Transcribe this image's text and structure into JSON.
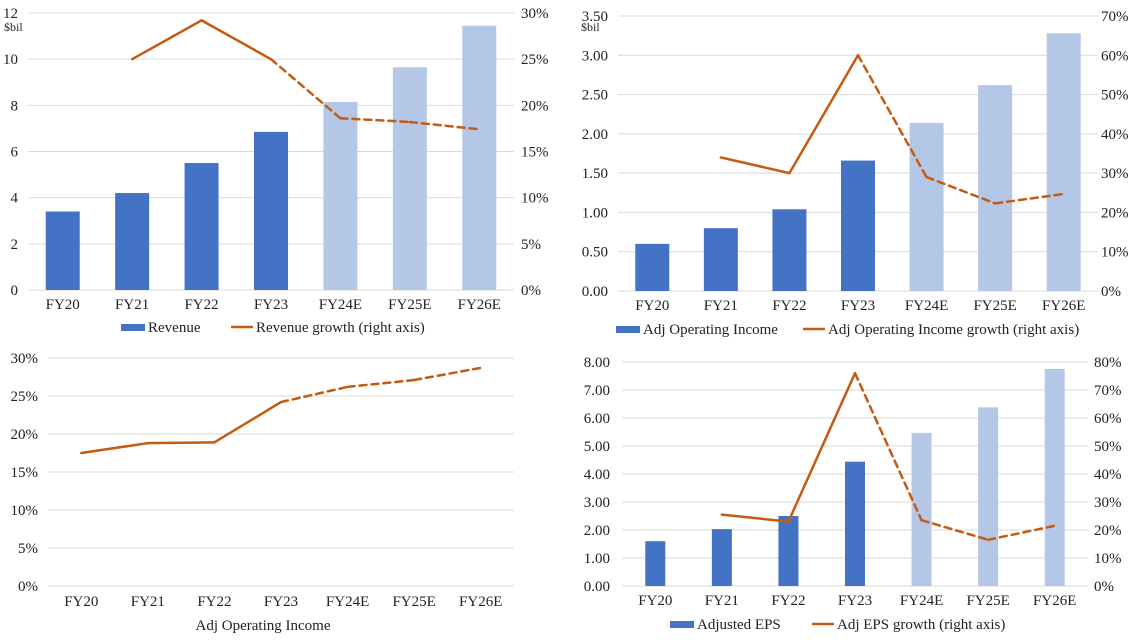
{
  "colors": {
    "actual_bar": "#4472c4",
    "estimate_bar": "#b4c7e7",
    "growth_line": "#c55a11",
    "grid": "#d9d9d9"
  },
  "chart_data": [
    {
      "type": "bar",
      "id": "revenue",
      "categories": [
        "FY20",
        "FY21",
        "FY22",
        "FY23",
        "FY24E",
        "FY25E",
        "FY26E"
      ],
      "unit_label": "$bil",
      "series": [
        {
          "name": "Revenue",
          "axis": "left",
          "values": [
            3.4,
            4.2,
            5.5,
            6.85,
            8.15,
            9.65,
            11.45
          ],
          "estimate_from_index": 4
        },
        {
          "name": "Revenue growth (right axis)",
          "axis": "right",
          "type": "line",
          "values": [
            null,
            25,
            29.2,
            25,
            18.6,
            18.2,
            17.4
          ],
          "dashed_from_index": 3
        }
      ],
      "left_axis": {
        "min": 0,
        "max": 12,
        "ticks": [
          "0",
          "2",
          "4",
          "6",
          "8",
          "10",
          "12"
        ]
      },
      "right_axis": {
        "min": 0,
        "max": 30,
        "ticks": [
          "0%",
          "5%",
          "10%",
          "15%",
          "20%",
          "25%",
          "30%"
        ]
      },
      "legend": [
        "Revenue",
        "Revenue growth (right axis)"
      ]
    },
    {
      "type": "bar",
      "id": "adj-operating-income",
      "categories": [
        "FY20",
        "FY21",
        "FY22",
        "FY23",
        "FY24E",
        "FY25E",
        "FY26E"
      ],
      "unit_label": "$bil",
      "series": [
        {
          "name": "Adj Operating Income",
          "axis": "left",
          "values": [
            0.6,
            0.8,
            1.04,
            1.66,
            2.14,
            2.62,
            3.28
          ],
          "estimate_from_index": 4
        },
        {
          "name": "Adj Operating Income growth (right axis)",
          "axis": "right",
          "type": "line",
          "values": [
            null,
            34,
            30,
            60,
            29,
            22.3,
            24.7
          ],
          "dashed_from_index": 3
        }
      ],
      "left_axis": {
        "min": 0,
        "max": 3.5,
        "ticks": [
          "0.00",
          "0.50",
          "1.00",
          "1.50",
          "2.00",
          "2.50",
          "3.00",
          "3.50"
        ]
      },
      "right_axis": {
        "min": 0,
        "max": 70,
        "ticks": [
          "0%",
          "10%",
          "20%",
          "30%",
          "40%",
          "50%",
          "60%",
          "70%"
        ]
      },
      "legend": [
        "Adj Operating Income",
        "Adj Operating Income growth (right axis)"
      ]
    },
    {
      "type": "line",
      "id": "adj-operating-margin",
      "categories": [
        "FY20",
        "FY21",
        "FY22",
        "FY23",
        "FY24E",
        "FY25E",
        "FY26E"
      ],
      "series": [
        {
          "name": "Adj Operating Income",
          "values": [
            17.5,
            18.8,
            18.9,
            24.2,
            26.2,
            27.1,
            28.7
          ],
          "dashed_from_index": 3
        }
      ],
      "left_axis": {
        "min": 0,
        "max": 30,
        "ticks": [
          "0%",
          "5%",
          "10%",
          "15%",
          "20%",
          "25%",
          "30%"
        ]
      },
      "xlabel": "Adj Operating Income"
    },
    {
      "type": "bar",
      "id": "adjusted-eps",
      "categories": [
        "FY20",
        "FY21",
        "FY22",
        "FY23",
        "FY24E",
        "FY25E",
        "FY26E"
      ],
      "series": [
        {
          "name": "Adjusted EPS",
          "axis": "left",
          "values": [
            1.6,
            2.03,
            2.5,
            4.44,
            5.47,
            6.38,
            7.75
          ],
          "estimate_from_index": 4
        },
        {
          "name": "Adj EPS growth (right axis)",
          "axis": "right",
          "type": "line",
          "values": [
            null,
            25.5,
            23,
            76,
            23.5,
            16.5,
            21.5
          ],
          "dashed_from_index": 3
        }
      ],
      "left_axis": {
        "min": 0,
        "max": 8,
        "ticks": [
          "0.00",
          "1.00",
          "2.00",
          "3.00",
          "4.00",
          "5.00",
          "6.00",
          "7.00",
          "8.00"
        ]
      },
      "right_axis": {
        "min": 0,
        "max": 80,
        "ticks": [
          "0%",
          "10%",
          "20%",
          "30%",
          "40%",
          "50%",
          "60%",
          "70%",
          "80%"
        ]
      },
      "legend": [
        "Adjusted EPS",
        "Adj EPS growth (right axis)"
      ]
    }
  ]
}
